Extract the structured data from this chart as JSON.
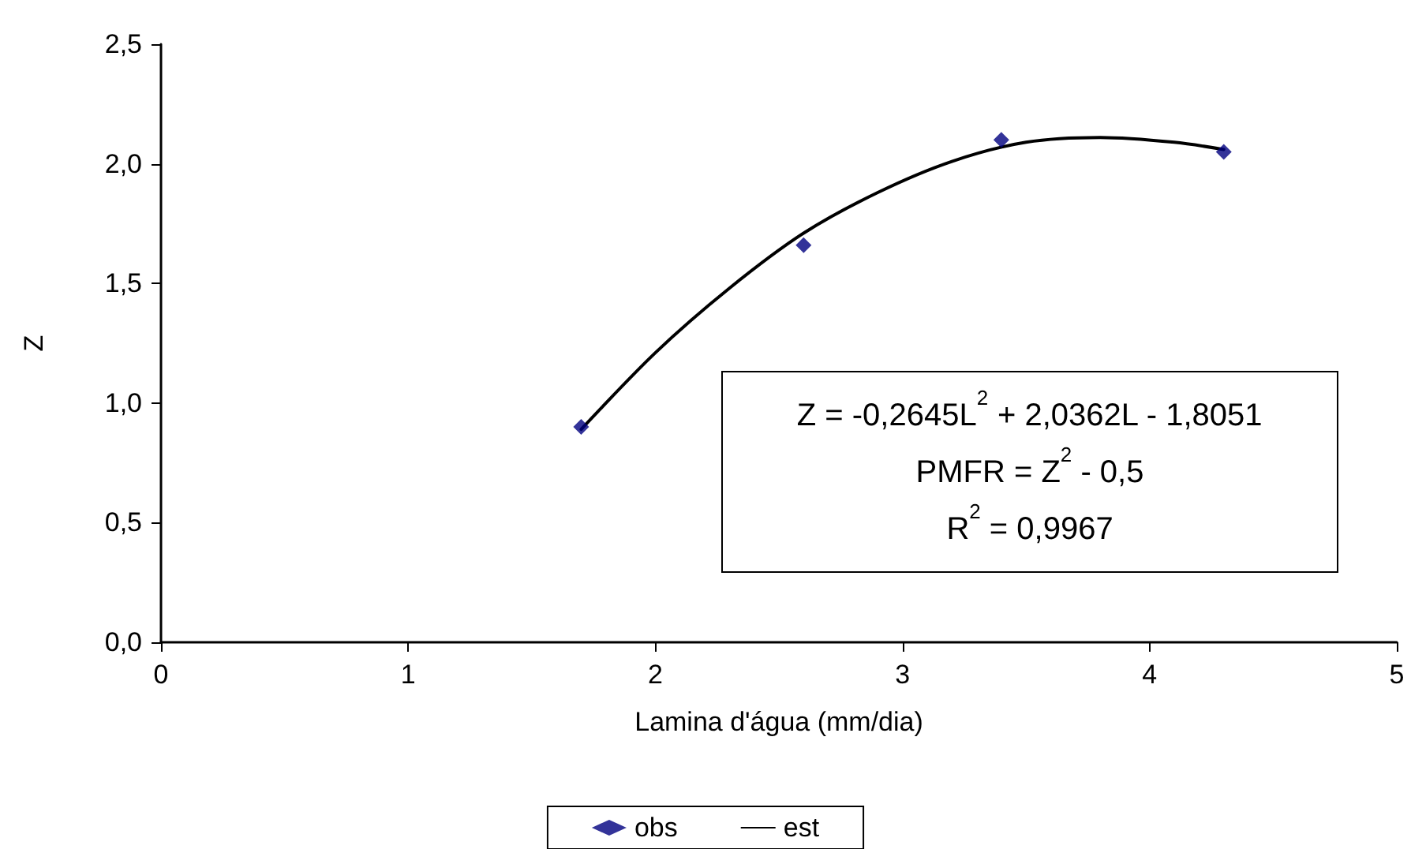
{
  "chart_data": {
    "type": "scatter",
    "xlabel": "Lamina d'água (mm/dia)",
    "ylabel": "Z",
    "xlim": [
      0,
      5
    ],
    "xticks": [
      0,
      1,
      2,
      3,
      4,
      5
    ],
    "ylim": [
      0,
      2.5
    ],
    "yticks": [
      {
        "value": 0,
        "label": "0,0"
      },
      {
        "value": 0.5,
        "label": "0,5"
      },
      {
        "value": 1,
        "label": "1,0"
      },
      {
        "value": 1.5,
        "label": "1,5"
      },
      {
        "value": 2,
        "label": "2,0"
      },
      {
        "value": 2.5,
        "label": "2,5"
      }
    ],
    "grid": false,
    "legend": "bottom",
    "series": [
      {
        "name": "obs",
        "type": "scatter",
        "marker": "diamond",
        "color": "#000080",
        "x": [
          1.7,
          2.6,
          3.4,
          4.3
        ],
        "values": [
          0.9,
          1.66,
          2.1,
          2.05
        ]
      },
      {
        "name": "est",
        "type": "line",
        "marker": "none",
        "line_style": "solid",
        "color": "#000000",
        "x": [
          1.7,
          2.0,
          2.3,
          2.6,
          2.9,
          3.2,
          3.5,
          3.8,
          4.1,
          4.3
        ],
        "values": [
          0.89,
          1.21,
          1.48,
          1.71,
          1.88,
          2.01,
          2.09,
          2.11,
          2.09,
          2.06
        ]
      }
    ],
    "annotations": [
      "Z = -0,2645L$^{2}$ + 2,0362L - 1,8051",
      "PMFR = Z$^{2}$ - 0,5",
      "R$^{2}$ = 0,9967"
    ]
  }
}
